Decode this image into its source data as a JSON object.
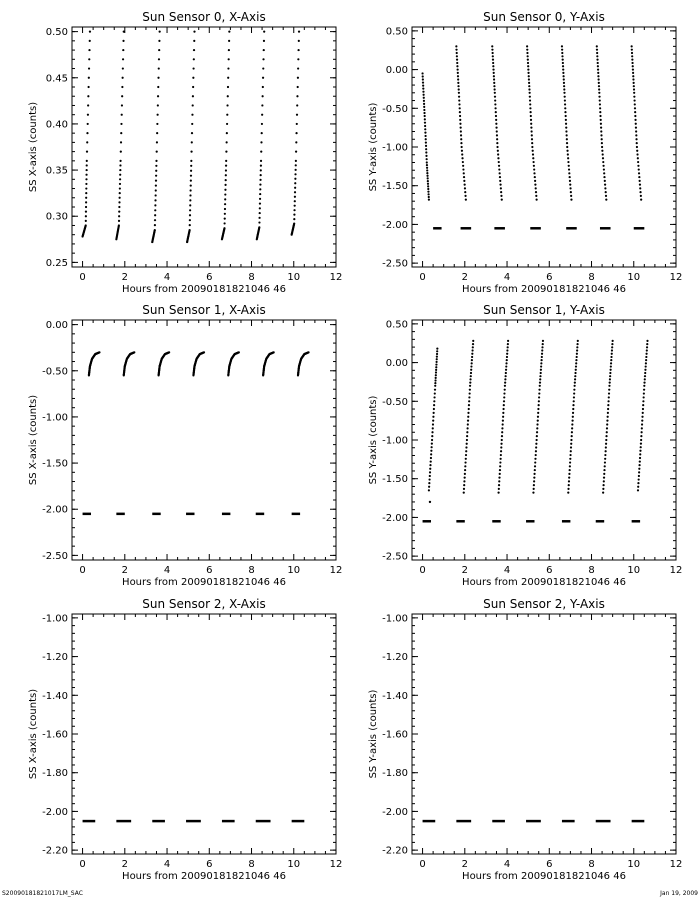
{
  "footer": {
    "left": "S20090181821017LM_SAC",
    "right": "Jan 19, 2009"
  },
  "chart_data": [
    {
      "type": "scatter",
      "title": "Sun Sensor 0, X-Axis",
      "xlabel": "Hours from 20090181821046 46",
      "ylabel": "SS X-axis (counts)",
      "xlim": [
        -0.5,
        12
      ],
      "ylim": [
        0.245,
        0.505
      ],
      "xticks": [
        0,
        2,
        4,
        6,
        8,
        10,
        12
      ],
      "yticks": [
        0.25,
        0.3,
        0.35,
        0.4,
        0.45,
        0.5
      ],
      "ytick_labels": [
        "0.25",
        "0.30",
        "0.35",
        "0.40",
        "0.45",
        "0.50"
      ],
      "segments": [
        {
          "x": [
            0.0,
            0.15,
            0.2,
            0.35
          ],
          "y": [
            0.278,
            0.29,
            0.36,
            0.5
          ]
        },
        {
          "x": [
            1.6,
            1.72,
            1.8,
            1.95
          ],
          "y": [
            0.275,
            0.29,
            0.36,
            0.5
          ]
        },
        {
          "x": [
            3.3,
            3.42,
            3.5,
            3.65
          ],
          "y": [
            0.272,
            0.285,
            0.36,
            0.5
          ]
        },
        {
          "x": [
            4.95,
            5.07,
            5.15,
            5.3
          ],
          "y": [
            0.272,
            0.285,
            0.36,
            0.5
          ]
        },
        {
          "x": [
            6.6,
            6.72,
            6.8,
            6.95
          ],
          "y": [
            0.275,
            0.287,
            0.36,
            0.5
          ]
        },
        {
          "x": [
            8.25,
            8.37,
            8.45,
            8.6
          ],
          "y": [
            0.275,
            0.288,
            0.36,
            0.5
          ]
        },
        {
          "x": [
            9.9,
            10.02,
            10.1,
            10.25
          ],
          "y": [
            0.28,
            0.292,
            0.36,
            0.5
          ]
        }
      ]
    },
    {
      "type": "scatter",
      "title": "Sun Sensor 0, Y-Axis",
      "xlabel": "Hours from 20090181821046 46",
      "ylabel": "SS Y-axis (counts)",
      "xlim": [
        -0.5,
        12
      ],
      "ylim": [
        -2.55,
        0.55
      ],
      "xticks": [
        0,
        2,
        4,
        6,
        8,
        10,
        12
      ],
      "yticks": [
        -2.5,
        -2.0,
        -1.5,
        -1.0,
        -0.5,
        0.0,
        0.5
      ],
      "ytick_labels": [
        "-2.50",
        "-2.00",
        "-1.50",
        "-1.00",
        "-0.50",
        "0.00",
        "0.50"
      ],
      "segments": [
        {
          "x": [
            0.0,
            0.1,
            0.2,
            0.3
          ],
          "y": [
            -0.05,
            -0.6,
            -1.2,
            -1.68
          ]
        },
        {
          "x": [
            1.6,
            1.72,
            1.85,
            2.05
          ],
          "y": [
            0.3,
            -0.3,
            -1.0,
            -1.68
          ]
        },
        {
          "x": [
            3.3,
            3.42,
            3.55,
            3.75
          ],
          "y": [
            0.3,
            -0.3,
            -1.0,
            -1.68
          ]
        },
        {
          "x": [
            4.95,
            5.07,
            5.2,
            5.4
          ],
          "y": [
            0.3,
            -0.3,
            -1.0,
            -1.68
          ]
        },
        {
          "x": [
            6.6,
            6.72,
            6.85,
            7.05
          ],
          "y": [
            0.3,
            -0.3,
            -1.0,
            -1.68
          ]
        },
        {
          "x": [
            8.25,
            8.37,
            8.5,
            8.7
          ],
          "y": [
            0.3,
            -0.3,
            -1.0,
            -1.68
          ]
        },
        {
          "x": [
            9.9,
            10.02,
            10.15,
            10.35
          ],
          "y": [
            0.3,
            -0.3,
            -1.0,
            -1.68
          ]
        }
      ],
      "flat": {
        "y": -2.05,
        "x_ranges": [
          [
            0.5,
            0.9
          ],
          [
            1.8,
            2.3
          ],
          [
            3.4,
            3.9
          ],
          [
            5.1,
            5.6
          ],
          [
            6.8,
            7.3
          ],
          [
            8.4,
            8.9
          ],
          [
            10.0,
            10.5
          ]
        ]
      }
    },
    {
      "type": "scatter",
      "title": "Sun Sensor 1, X-Axis",
      "xlabel": "Hours from 20090181821046 46",
      "ylabel": "SS X-axis (counts)",
      "xlim": [
        -0.5,
        12
      ],
      "ylim": [
        -2.55,
        0.05
      ],
      "xticks": [
        0,
        2,
        4,
        6,
        8,
        10,
        12
      ],
      "yticks": [
        -2.5,
        -2.0,
        -1.5,
        -1.0,
        -0.5,
        0.0
      ],
      "ytick_labels": [
        "-2.50",
        "-2.00",
        "-1.50",
        "-1.00",
        "-0.50",
        "0.00"
      ],
      "segments": [
        {
          "x": [
            0.3,
            0.35,
            0.45,
            0.6,
            0.8
          ],
          "y": [
            -0.55,
            -0.45,
            -0.37,
            -0.32,
            -0.3
          ]
        },
        {
          "x": [
            1.95,
            2.0,
            2.1,
            2.25,
            2.45
          ],
          "y": [
            -0.55,
            -0.45,
            -0.37,
            -0.32,
            -0.3
          ]
        },
        {
          "x": [
            3.6,
            3.65,
            3.75,
            3.9,
            4.1
          ],
          "y": [
            -0.55,
            -0.45,
            -0.37,
            -0.32,
            -0.3
          ]
        },
        {
          "x": [
            5.25,
            5.3,
            5.4,
            5.55,
            5.75
          ],
          "y": [
            -0.55,
            -0.45,
            -0.37,
            -0.32,
            -0.3
          ]
        },
        {
          "x": [
            6.9,
            6.95,
            7.05,
            7.2,
            7.4
          ],
          "y": [
            -0.55,
            -0.45,
            -0.37,
            -0.32,
            -0.3
          ]
        },
        {
          "x": [
            8.55,
            8.6,
            8.7,
            8.85,
            9.05
          ],
          "y": [
            -0.55,
            -0.45,
            -0.37,
            -0.32,
            -0.3
          ]
        },
        {
          "x": [
            10.2,
            10.25,
            10.35,
            10.5,
            10.7
          ],
          "y": [
            -0.55,
            -0.45,
            -0.37,
            -0.32,
            -0.3
          ]
        }
      ],
      "flat": {
        "y": -2.05,
        "x_ranges": [
          [
            0.0,
            0.4
          ],
          [
            1.6,
            2.0
          ],
          [
            3.3,
            3.7
          ],
          [
            4.9,
            5.3
          ],
          [
            6.6,
            7.0
          ],
          [
            8.2,
            8.6
          ],
          [
            9.9,
            10.3
          ]
        ]
      }
    },
    {
      "type": "scatter",
      "title": "Sun Sensor 1, Y-Axis",
      "xlabel": "Hours from 20090181821046 46",
      "ylabel": "SS Y-axis (counts)",
      "xlim": [
        -0.5,
        12
      ],
      "ylim": [
        -2.55,
        0.55
      ],
      "xticks": [
        0,
        2,
        4,
        6,
        8,
        10,
        12
      ],
      "yticks": [
        -2.5,
        -2.0,
        -1.5,
        -1.0,
        -0.5,
        0.0,
        0.5
      ],
      "ytick_labels": [
        "-2.50",
        "-2.00",
        "-1.50",
        "-1.00",
        "-0.50",
        "0.00",
        "0.50"
      ],
      "segments": [
        {
          "x": [
            0.3,
            0.45,
            0.6,
            0.7
          ],
          "y": [
            -1.65,
            -1.0,
            -0.3,
            0.18
          ]
        },
        {
          "x": [
            1.95,
            2.1,
            2.25,
            2.4
          ],
          "y": [
            -1.68,
            -1.0,
            -0.3,
            0.28
          ]
        },
        {
          "x": [
            3.6,
            3.75,
            3.9,
            4.05
          ],
          "y": [
            -1.68,
            -1.0,
            -0.3,
            0.28
          ]
        },
        {
          "x": [
            5.25,
            5.4,
            5.55,
            5.7
          ],
          "y": [
            -1.68,
            -1.0,
            -0.3,
            0.28
          ]
        },
        {
          "x": [
            6.9,
            7.05,
            7.2,
            7.35
          ],
          "y": [
            -1.68,
            -1.0,
            -0.3,
            0.28
          ]
        },
        {
          "x": [
            8.55,
            8.7,
            8.85,
            9.0
          ],
          "y": [
            -1.68,
            -1.0,
            -0.3,
            0.28
          ]
        },
        {
          "x": [
            10.2,
            10.35,
            10.5,
            10.65
          ],
          "y": [
            -1.65,
            -1.0,
            -0.3,
            0.28
          ]
        }
      ],
      "flat": {
        "y": -2.05,
        "x_ranges": [
          [
            0.0,
            0.4
          ],
          [
            1.6,
            2.0
          ],
          [
            3.3,
            3.7
          ],
          [
            4.9,
            5.3
          ],
          [
            6.6,
            7.0
          ],
          [
            8.2,
            8.6
          ],
          [
            9.9,
            10.3
          ]
        ]
      },
      "points": [
        {
          "x": 0.35,
          "y": -1.8
        }
      ]
    },
    {
      "type": "scatter",
      "title": "Sun Sensor 2, X-Axis",
      "xlabel": "Hours from 20090181821046 46",
      "ylabel": "SS X-axis (counts)",
      "xlim": [
        -0.5,
        12
      ],
      "ylim": [
        -2.22,
        -0.98
      ],
      "xticks": [
        0,
        2,
        4,
        6,
        8,
        10,
        12
      ],
      "yticks": [
        -2.2,
        -2.0,
        -1.8,
        -1.6,
        -1.4,
        -1.2,
        -1.0
      ],
      "ytick_labels": [
        "-2.20",
        "-2.00",
        "-1.80",
        "-1.60",
        "-1.40",
        "-1.20",
        "-1.00"
      ],
      "segments": [],
      "flat": {
        "y": -2.05,
        "x_ranges": [
          [
            0.0,
            0.6
          ],
          [
            1.6,
            2.3
          ],
          [
            3.3,
            3.9
          ],
          [
            4.9,
            5.6
          ],
          [
            6.6,
            7.2
          ],
          [
            8.2,
            8.9
          ],
          [
            9.9,
            10.5
          ]
        ]
      }
    },
    {
      "type": "scatter",
      "title": "Sun Sensor 2, Y-Axis",
      "xlabel": "Hours from 20090181821046 46",
      "ylabel": "SS Y-axis (counts)",
      "xlim": [
        -0.5,
        12
      ],
      "ylim": [
        -2.22,
        -0.98
      ],
      "xticks": [
        0,
        2,
        4,
        6,
        8,
        10,
        12
      ],
      "yticks": [
        -2.2,
        -2.0,
        -1.8,
        -1.6,
        -1.4,
        -1.2,
        -1.0
      ],
      "ytick_labels": [
        "-2.20",
        "-2.00",
        "-1.80",
        "-1.60",
        "-1.40",
        "-1.20",
        "-1.00"
      ],
      "segments": [],
      "flat": {
        "y": -2.05,
        "x_ranges": [
          [
            0.0,
            0.6
          ],
          [
            1.6,
            2.3
          ],
          [
            3.3,
            3.9
          ],
          [
            4.9,
            5.6
          ],
          [
            6.6,
            7.2
          ],
          [
            8.2,
            8.9
          ],
          [
            9.9,
            10.5
          ]
        ]
      }
    }
  ]
}
